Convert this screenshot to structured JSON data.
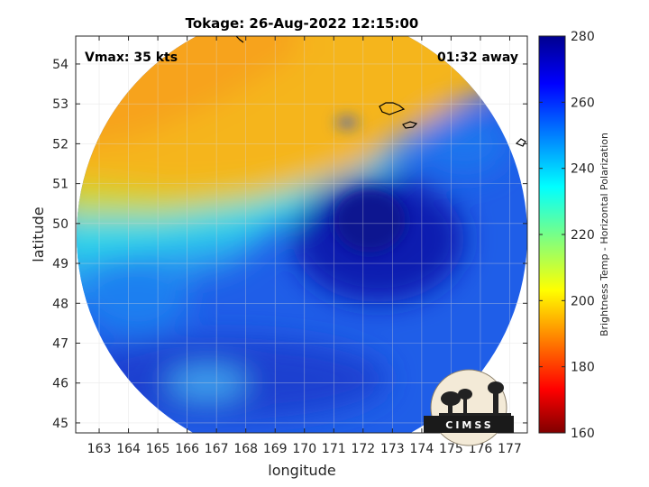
{
  "chart_data": {
    "type": "heatmap",
    "title": "Tokage: 26-Aug-2022 12:15:00",
    "xlabel": "longitude",
    "ylabel": "latitude",
    "xlim": [
      162.2,
      177.6
    ],
    "ylim": [
      44.75,
      54.7
    ],
    "x_ticks": [
      163,
      164,
      165,
      166,
      167,
      168,
      169,
      170,
      171,
      172,
      173,
      174,
      175,
      176,
      177
    ],
    "y_ticks": [
      45,
      46,
      47,
      48,
      49,
      50,
      51,
      52,
      53,
      54
    ],
    "grid": true,
    "annotations": {
      "top_left": "Vmax: 35 kts",
      "top_right": "01:32 away"
    },
    "colorbar": {
      "label": "Brightness Temp - Horizontal Polarization",
      "min": 160,
      "max": 280,
      "ticks": [
        160,
        180,
        200,
        220,
        240,
        260,
        280
      ],
      "colormap": "jet"
    },
    "swath": {
      "center_lon": 170.0,
      "center_lat": 49.7,
      "shape": "circular"
    },
    "field_summary": [
      {
        "region": "northwest (north of front, ~51-54.5N)",
        "brightness_temp": 197
      },
      {
        "region": "frontal band (~50-51N)",
        "brightness_temp": 235
      },
      {
        "region": "cyclone core (~49.8N, 172.5E)",
        "brightness_temp": 272
      },
      {
        "region": "southern swath",
        "brightness_temp": 255
      }
    ],
    "logo": "CIMSS"
  },
  "colors": {
    "background": "#ffffff",
    "grid": "#d8d8d8",
    "axis": "#262626"
  }
}
